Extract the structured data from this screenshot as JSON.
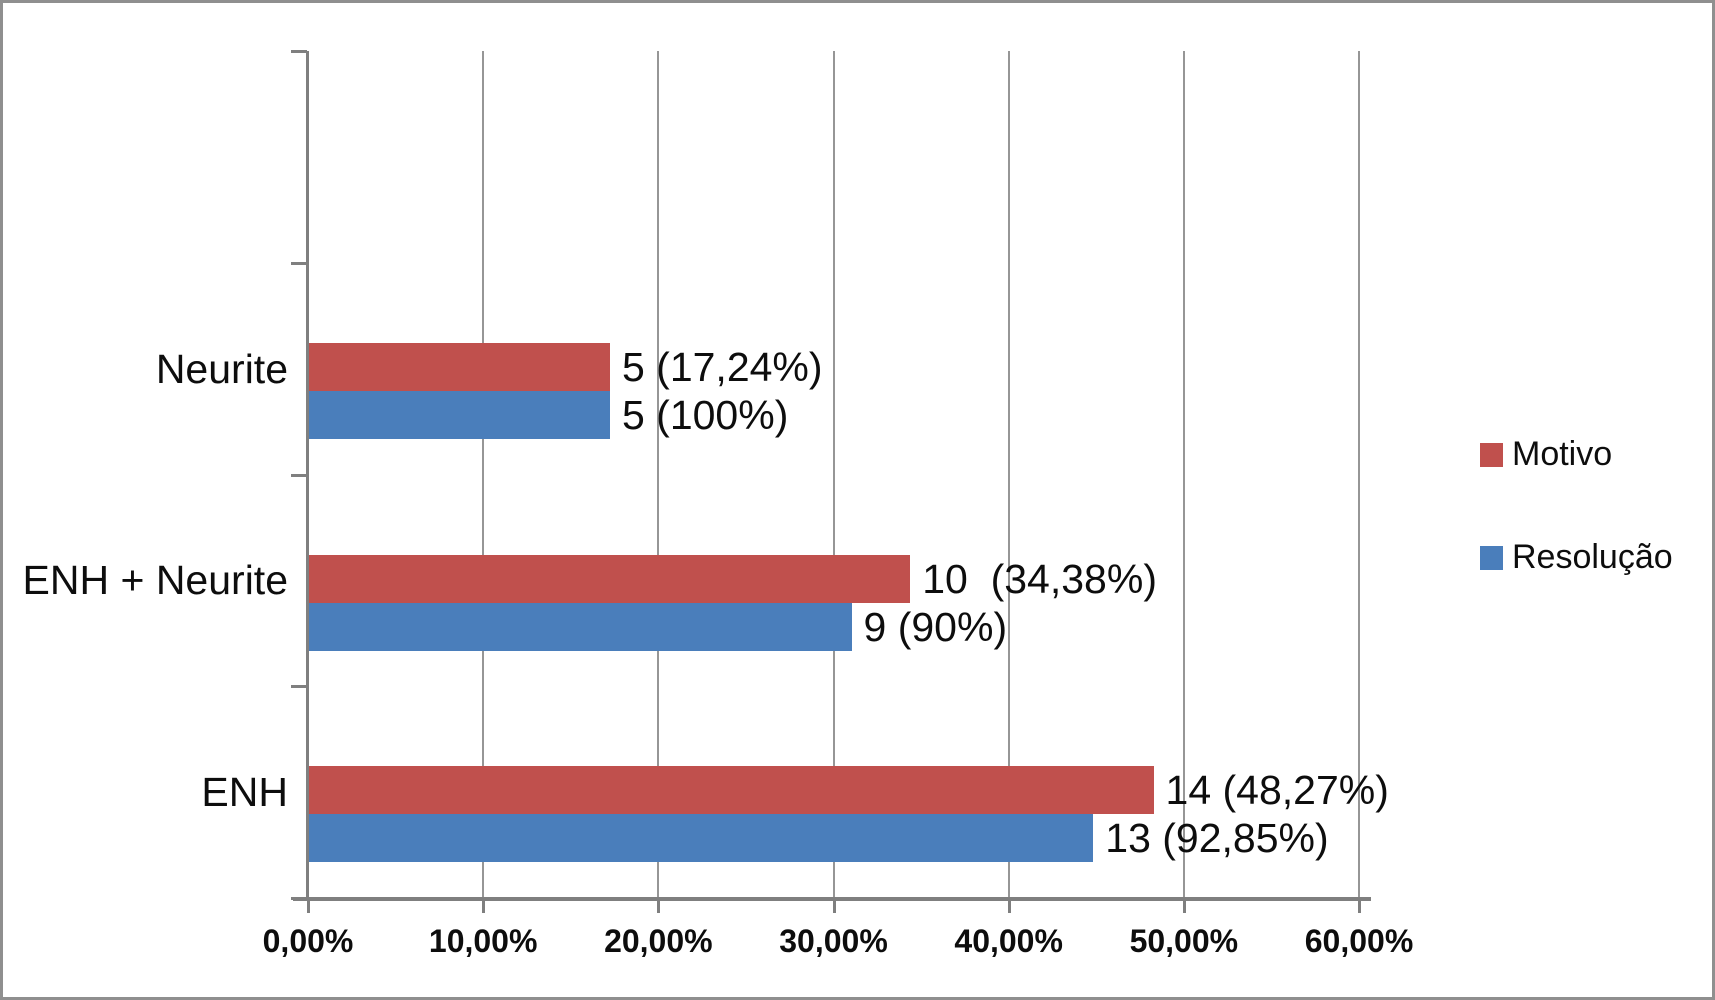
{
  "chart_data": {
    "type": "bar",
    "orientation": "horizontal",
    "title": "",
    "categories": [
      "Neurite",
      "ENH + Neurite",
      "ENH"
    ],
    "series": [
      {
        "name": "Motivo",
        "color": "#c0504d",
        "values_pct": [
          17.24,
          34.38,
          48.27
        ],
        "bar_labels": [
          "5 (17,24%)",
          "10  (34,38%)",
          "14 (48,27%)"
        ]
      },
      {
        "name": "Resolução",
        "color": "#4a7ebb",
        "values_pct": [
          17.24,
          31.03,
          44.83
        ],
        "bar_labels": [
          "5 (100%)",
          "9 (90%)",
          "13 (92,85%)"
        ]
      }
    ],
    "x_axis": {
      "min": 0,
      "max": 60,
      "tick_step": 10,
      "tick_labels": [
        "0,00%",
        "10,00%",
        "20,00%",
        "30,00%",
        "40,00%",
        "50,00%",
        "60,00%"
      ]
    },
    "legend": {
      "position": "right"
    },
    "gridlines": true,
    "empty_top_band": true
  },
  "colors": {
    "grid": "#969696",
    "axis": "#7f7f7f",
    "text": "#0d0d0d",
    "frame_border": "#8f8f8f",
    "background": "#ffffff"
  }
}
